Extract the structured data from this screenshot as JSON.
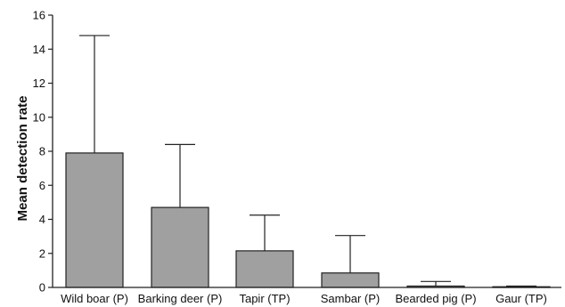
{
  "chart_data": {
    "type": "bar",
    "title": "",
    "xlabel": "",
    "ylabel": "Mean detection rate",
    "ylim": [
      0,
      16
    ],
    "yticks": [
      0,
      2,
      4,
      6,
      8,
      10,
      12,
      14,
      16
    ],
    "grid": false,
    "categories": [
      "Wild boar (P)",
      "Barking deer (P)",
      "Tapir (TP)",
      "Sambar (P)",
      "Bearded pig (P)",
      "Gaur (TP)"
    ],
    "values": [
      7.9,
      4.7,
      2.15,
      0.85,
      0.08,
      0.04
    ],
    "error_upper": [
      14.8,
      8.4,
      4.25,
      3.05,
      0.35,
      0.08
    ],
    "bar_color": "#a0a0a0",
    "edge_color": "#222222"
  }
}
